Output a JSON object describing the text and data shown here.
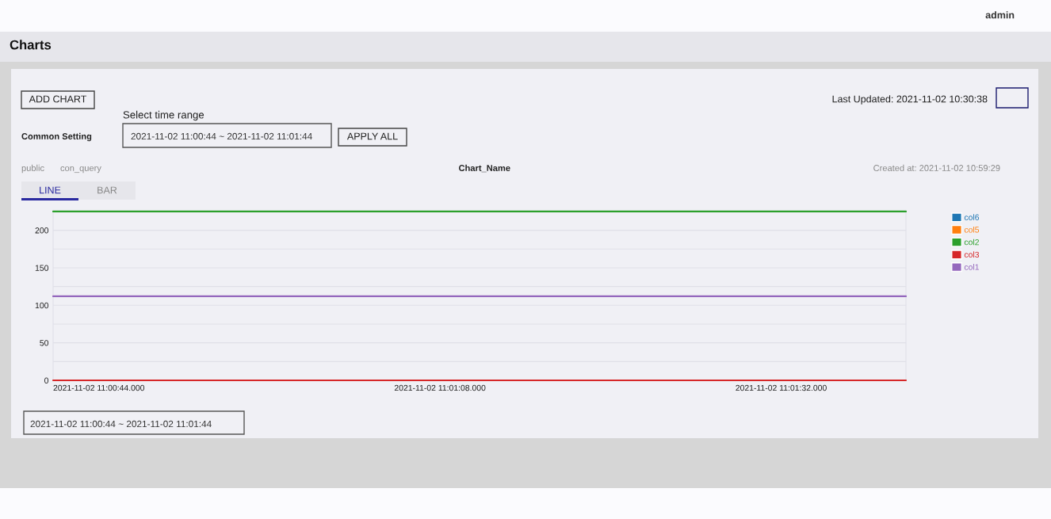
{
  "chart_data": {
    "type": "line",
    "title": "Chart_Name",
    "categories": [
      "2021-11-02 11:00:44.000",
      null,
      "2021-11-02 11:01:08.000",
      null,
      "2021-11-02 11:01:32.000",
      null
    ],
    "series": [
      {
        "name": "col6",
        "color": "#1f77b4",
        "values": [
          null,
          null,
          null,
          null,
          null,
          null
        ]
      },
      {
        "name": "col5",
        "color": "#ff7f0e",
        "values": [
          null,
          null,
          null,
          null,
          null,
          null
        ]
      },
      {
        "name": "col2",
        "color": "#2ca02c",
        "values": [
          225,
          225,
          225,
          225,
          225,
          225
        ]
      },
      {
        "name": "col3",
        "color": "#d62728",
        "values": [
          0,
          0,
          0,
          0,
          0,
          0
        ]
      },
      {
        "name": "col1",
        "color": "#9467bd",
        "values": [
          112,
          112,
          112,
          112,
          112,
          112
        ]
      }
    ],
    "ylim": [
      0,
      226
    ],
    "yticks": [
      0,
      {
        "value": 25,
        "label": null
      },
      50,
      {
        "value": 75,
        "label": null
      },
      100,
      {
        "value": 125,
        "label": null
      },
      150,
      {
        "value": 175,
        "label": null
      },
      200,
      {
        "value": 225,
        "label": null
      }
    ],
    "grid": "y",
    "legend": "right",
    "marker": "none",
    "line_style": "solid",
    "annotations": [
      "Charts",
      "admin",
      "ADD CHART",
      "Last Updated: 2021-11-02 10:30:38",
      "Select time range",
      "Common Setting",
      "2021-11-02 11:00:44 ~ 2021-11-02 11:01:44",
      "APPLY ALL",
      "public",
      "con_query",
      "Created at: 2021-11-02 10:59:29",
      "LINE",
      "BAR",
      "2021-11-02 11:00:44 ~ 2021-11-02 11:01:44"
    ]
  }
}
